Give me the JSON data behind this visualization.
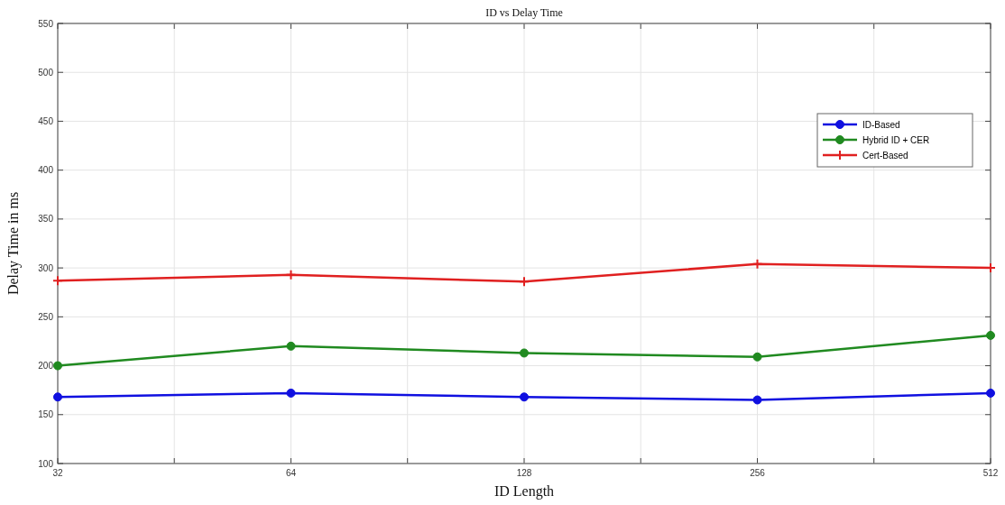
{
  "chart_data": {
    "type": "line",
    "title": "ID vs Delay Time",
    "xlabel": "ID Length",
    "ylabel": "Delay Time in ms",
    "x": [
      32,
      64,
      128,
      256,
      512
    ],
    "log": "x",
    "xlim": [
      32,
      512
    ],
    "xticks": [
      32,
      {
        "value": 45.25,
        "label": null
      },
      64,
      {
        "value": 90.5,
        "label": null
      },
      128,
      {
        "value": 181,
        "label": null
      },
      256,
      {
        "value": 362,
        "label": null
      },
      512
    ],
    "ylim": [
      100,
      550
    ],
    "yticks": [
      100,
      150,
      200,
      250,
      300,
      350,
      400,
      450,
      500,
      550
    ],
    "grid": true,
    "legend": "top right",
    "line_style": "solid",
    "series": [
      {
        "name": "ID-Based",
        "color": "#1010e0",
        "marker": "circle",
        "values": [
          168,
          172,
          168,
          165,
          172
        ]
      },
      {
        "name": "Hybrid ID + CER",
        "color": "#208a20",
        "marker": "circle",
        "values": [
          200,
          220,
          213,
          209,
          231
        ]
      },
      {
        "name": "Cert-Based",
        "color": "#e02020",
        "marker": "cross",
        "values": [
          287,
          293,
          286,
          304,
          300
        ]
      }
    ]
  }
}
